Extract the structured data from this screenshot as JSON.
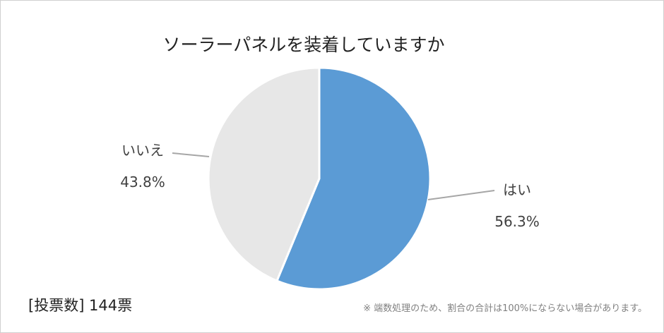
{
  "chart_data": {
    "type": "pie",
    "title": "ソーラーパネルを装着していますか",
    "slices": [
      {
        "label": "はい",
        "value": 56.3,
        "display": "56.3%",
        "color": "#5b9bd5"
      },
      {
        "label": "いいえ",
        "value": 43.8,
        "display": "43.8%",
        "color": "#e7e7e7"
      }
    ],
    "start_angle": "12 o'clock",
    "direction": "clockwise",
    "legend": "none (data labels with leader lines)"
  },
  "footer": {
    "votes": "[投票数]  144票",
    "note": "※  端数処理のため、割合の合計は100%にならない場合があります。"
  }
}
